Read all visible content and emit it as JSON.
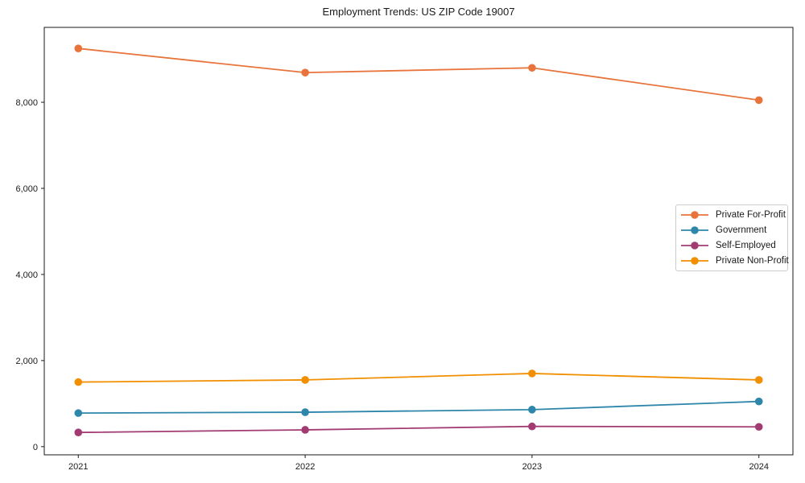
{
  "title": "Employment Trends: US ZIP Code 19007",
  "chart_data": {
    "type": "line",
    "title": "Employment Trends: US ZIP Code 19007",
    "xlabel": "",
    "ylabel": "",
    "categories": [
      "2021",
      "2022",
      "2023",
      "2024"
    ],
    "series": [
      {
        "name": "Private For-Profit",
        "color": "#E8743B",
        "values": [
          9250,
          8690,
          8800,
          8050
        ]
      },
      {
        "name": "Government",
        "color": "#2E86AB",
        "values": [
          780,
          800,
          860,
          1050
        ]
      },
      {
        "name": "Self-Employed",
        "color": "#A23B72",
        "values": [
          330,
          390,
          470,
          460
        ]
      },
      {
        "name": "Private Non-Profit",
        "color": "#F18F01",
        "values": [
          1500,
          1550,
          1700,
          1550
        ]
      }
    ],
    "y_ticks": [
      0,
      2000,
      4000,
      6000,
      8000
    ],
    "y_tick_labels": [
      "0",
      "2,000",
      "4,000",
      "6,000",
      "8,000"
    ],
    "ylim": [
      -190,
      9740
    ],
    "xlim": [
      -0.15,
      3.15
    ],
    "grid": false,
    "marker": "circle",
    "legend_position": "center right",
    "spine_color": "#1a1a1a",
    "background_color": "#ffffff"
  }
}
